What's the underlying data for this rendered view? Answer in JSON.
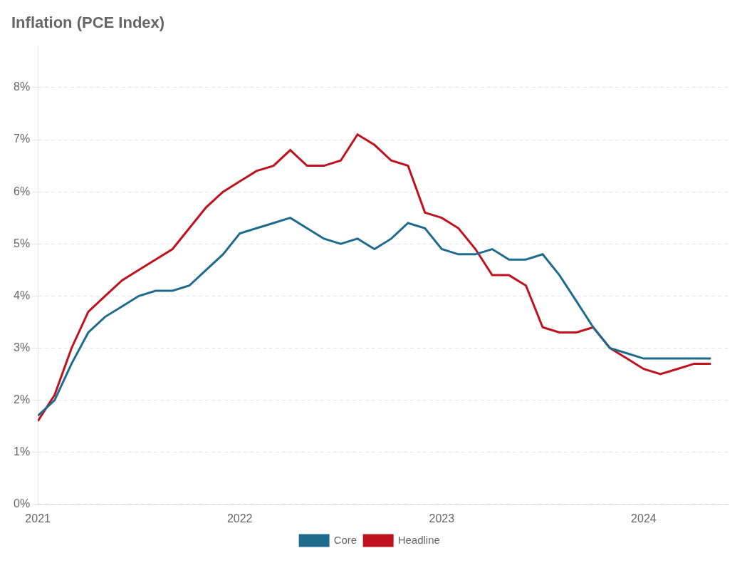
{
  "chart_data": {
    "type": "line",
    "title": "Inflation (PCE Index)",
    "x": [
      2021.0,
      2021.083,
      2021.167,
      2021.25,
      2021.333,
      2021.417,
      2021.5,
      2021.583,
      2021.667,
      2021.75,
      2021.833,
      2021.917,
      2022.0,
      2022.083,
      2022.167,
      2022.25,
      2022.333,
      2022.417,
      2022.5,
      2022.583,
      2022.667,
      2022.75,
      2022.833,
      2022.917,
      2023.0,
      2023.083,
      2023.167,
      2023.25,
      2023.333,
      2023.417,
      2023.5,
      2023.583,
      2023.667,
      2023.75,
      2023.833,
      2023.917,
      2024.0,
      2024.083,
      2024.167,
      2024.25,
      2024.333
    ],
    "series": [
      {
        "name": "Core",
        "color": "#1f6b8e",
        "values": [
          0.017,
          0.02,
          0.027,
          0.033,
          0.036,
          0.038,
          0.04,
          0.041,
          0.041,
          0.042,
          0.045,
          0.048,
          0.052,
          0.053,
          0.054,
          0.055,
          0.053,
          0.051,
          0.05,
          0.051,
          0.049,
          0.051,
          0.054,
          0.053,
          0.049,
          0.048,
          0.048,
          0.049,
          0.047,
          0.047,
          0.048,
          0.044,
          0.039,
          0.034,
          0.03,
          0.029,
          0.028,
          0.028,
          0.028,
          0.028,
          0.028
        ]
      },
      {
        "name": "Headline",
        "color": "#c0111f",
        "values": [
          0.016,
          0.021,
          0.03,
          0.037,
          0.04,
          0.043,
          0.045,
          0.047,
          0.049,
          0.053,
          0.057,
          0.06,
          0.062,
          0.064,
          0.065,
          0.068,
          0.065,
          0.065,
          0.066,
          0.071,
          0.069,
          0.066,
          0.065,
          0.056,
          0.055,
          0.053,
          0.049,
          0.044,
          0.044,
          0.042,
          0.034,
          0.033,
          0.033,
          0.034,
          0.03,
          0.028,
          0.026,
          0.025,
          0.026,
          0.027,
          0.027
        ]
      }
    ],
    "xlim": [
      2021.0,
      2024.42
    ],
    "xticks": [
      2021,
      2022,
      2023,
      2024
    ],
    "ylim": [
      0,
      0.088
    ],
    "yticks": [
      {
        "value": 0.0,
        "label": "0%"
      },
      {
        "value": 0.01,
        "label": "1%"
      },
      {
        "value": 0.02,
        "label": "2%"
      },
      {
        "value": 0.03,
        "label": "3%"
      },
      {
        "value": 0.04,
        "label": "4%"
      },
      {
        "value": 0.05,
        "label": "5%"
      },
      {
        "value": 0.06,
        "label": "6%"
      },
      {
        "value": 0.07,
        "label": "7%"
      },
      {
        "value": 0.08,
        "label": "8%"
      }
    ],
    "grid": "y",
    "legend": "bottom"
  }
}
